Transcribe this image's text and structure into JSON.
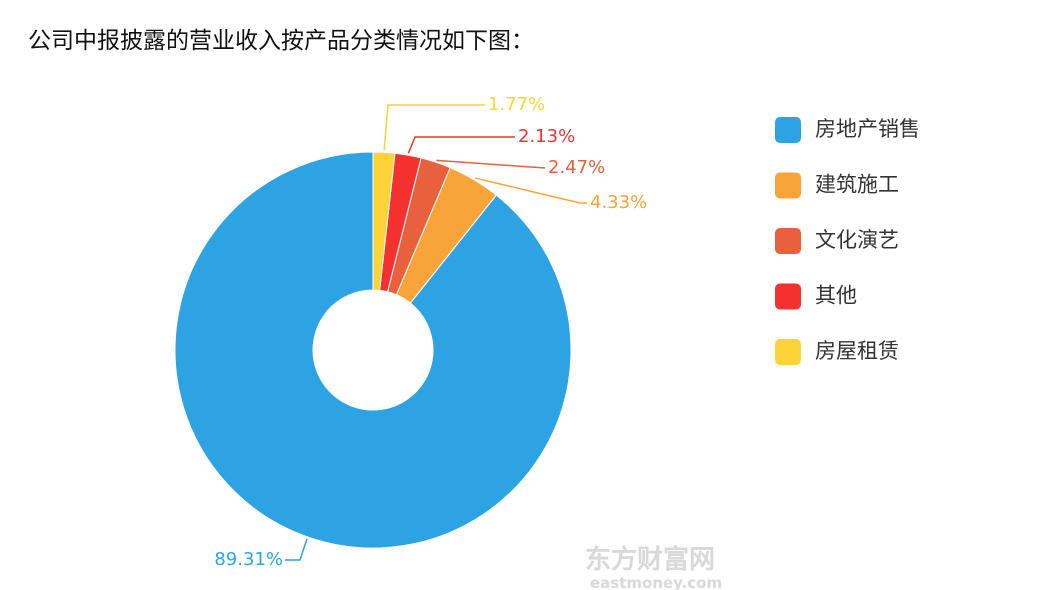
{
  "chart_data": {
    "type": "donut",
    "title": "公司中报披露的营业收入按产品分类情况如下图：",
    "series": [
      {
        "name": "房地产销售",
        "color": "#2ea3e3",
        "values": [
          89.31
        ],
        "value_labels": [
          "89.31%"
        ]
      },
      {
        "name": "建筑施工",
        "color": "#f9a43a",
        "values": [
          4.33
        ],
        "value_labels": [
          "4.33%"
        ]
      },
      {
        "name": "文化演艺",
        "color": "#e8603c",
        "values": [
          2.47
        ],
        "value_labels": [
          "2.47%"
        ]
      },
      {
        "name": "其他",
        "color": "#f5312f",
        "values": [
          2.13
        ],
        "value_labels": [
          "2.13%"
        ]
      },
      {
        "name": "房屋租赁",
        "color": "#fdd33a",
        "values": [
          1.77
        ],
        "value_labels": [
          "1.77%"
        ]
      }
    ],
    "clockwise": false,
    "watermark": [
      "东方财富网",
      "eastmoney.com"
    ]
  }
}
